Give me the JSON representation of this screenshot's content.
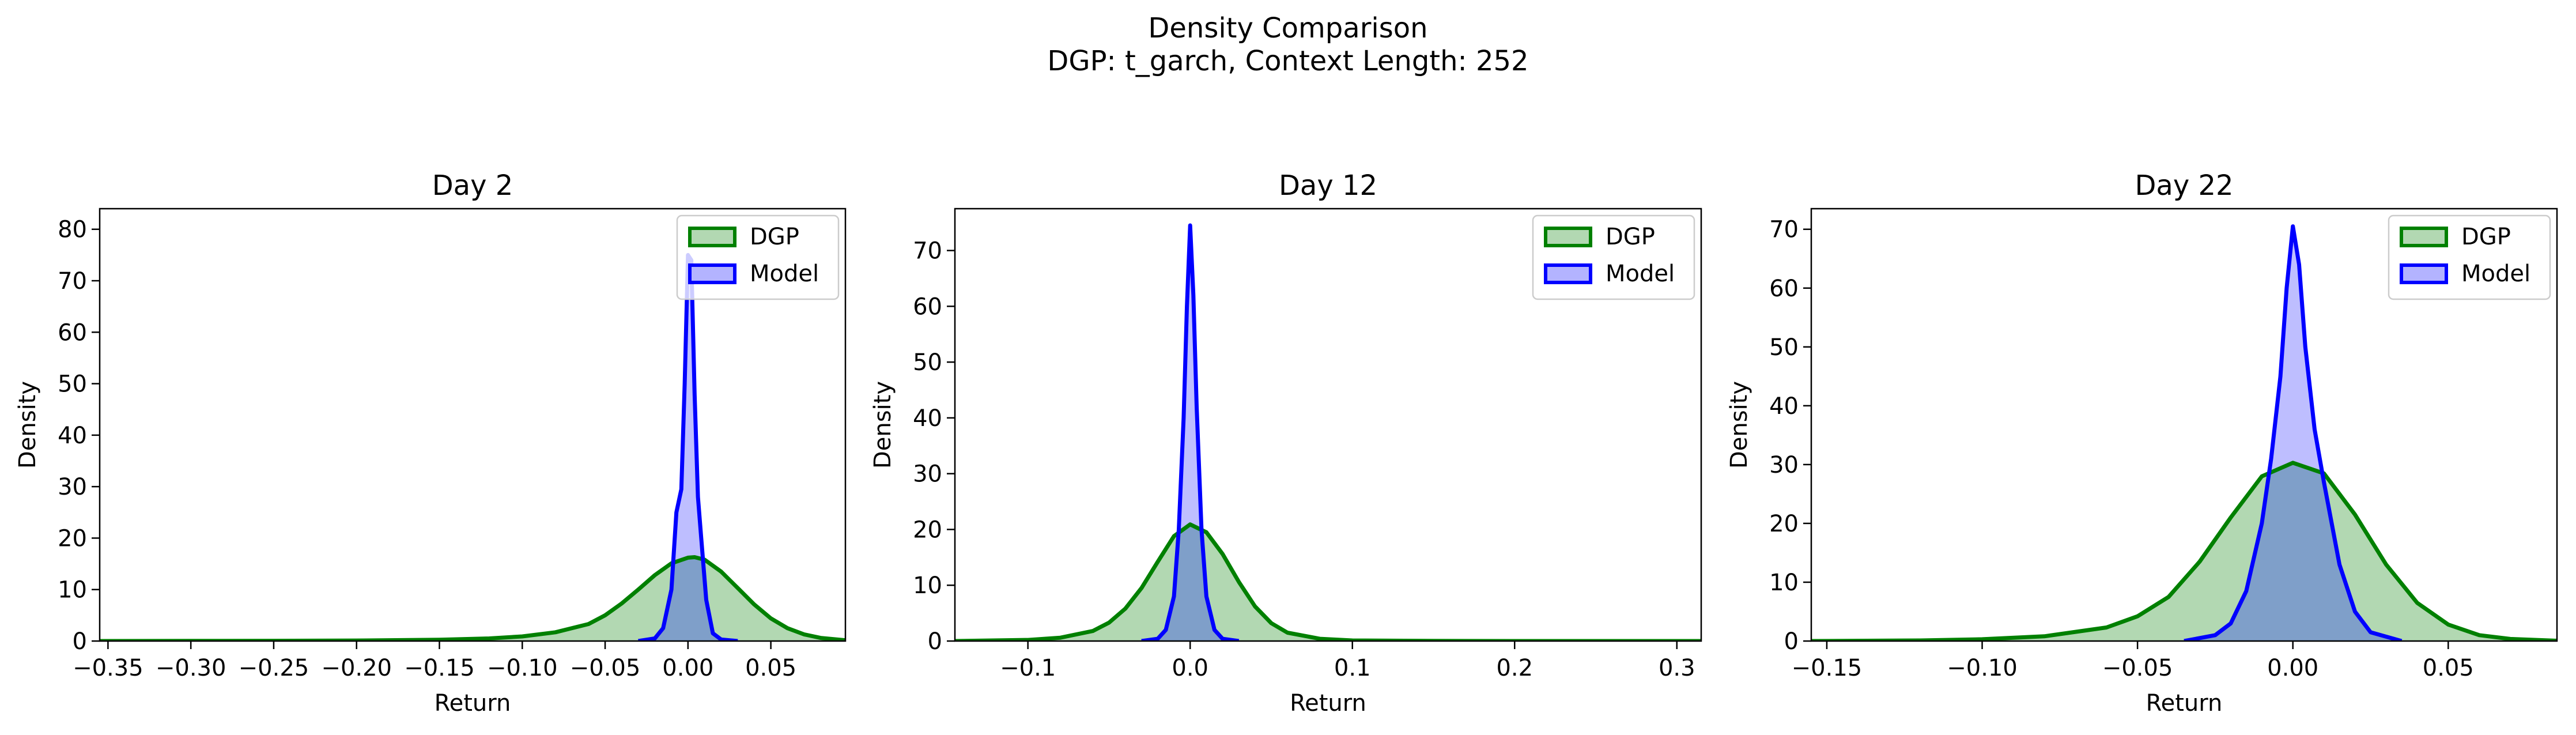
{
  "suptitle": [
    "Density Comparison",
    "DGP: t_garch, Context Length: 252"
  ],
  "legend_labels": [
    "DGP",
    "Model"
  ],
  "colors": {
    "dgp_line": "#008000",
    "dgp_fill": "#b2d8b2",
    "model_line": "#0000ff",
    "model_fill": "#b3b3ff",
    "overlap_fill": "#7f9fc9"
  },
  "chart_data": [
    {
      "type": "area",
      "title": "Day 2",
      "xlabel": "Return",
      "ylabel": "Density",
      "xlim": [
        -0.355,
        0.095
      ],
      "ylim": [
        0,
        84
      ],
      "xticks": [
        -0.35,
        -0.3,
        -0.25,
        -0.2,
        -0.15,
        -0.1,
        -0.05,
        0.0,
        0.05
      ],
      "xtick_labels": [
        "−0.35",
        "−0.30",
        "−0.25",
        "−0.20",
        "−0.15",
        "−0.10",
        "−0.05",
        "0.00",
        "0.05"
      ],
      "yticks": [
        0,
        10,
        20,
        30,
        40,
        50,
        60,
        70,
        80
      ],
      "ytick_labels": [
        "0",
        "10",
        "20",
        "30",
        "40",
        "50",
        "60",
        "70",
        "80"
      ],
      "legend": "top-right",
      "grid": false,
      "series": [
        {
          "name": "DGP",
          "x": [
            -0.355,
            -0.3,
            -0.25,
            -0.2,
            -0.15,
            -0.12,
            -0.1,
            -0.08,
            -0.06,
            -0.05,
            -0.04,
            -0.03,
            -0.02,
            -0.01,
            0.0,
            0.004,
            0.01,
            0.02,
            0.03,
            0.04,
            0.05,
            0.06,
            0.07,
            0.08,
            0.095
          ],
          "y": [
            0,
            0.02,
            0.05,
            0.1,
            0.25,
            0.5,
            0.9,
            1.7,
            3.3,
            5.0,
            7.3,
            10.0,
            12.8,
            15.1,
            16.2,
            16.3,
            15.8,
            13.5,
            10.3,
            7.1,
            4.4,
            2.5,
            1.3,
            0.6,
            0.15
          ]
        },
        {
          "name": "Model",
          "x": [
            -0.03,
            -0.02,
            -0.015,
            -0.01,
            -0.007,
            -0.004,
            -0.002,
            0.0,
            0.002,
            0.004,
            0.006,
            0.008,
            0.011,
            0.015,
            0.02,
            0.03
          ],
          "y": [
            0,
            0.5,
            2.5,
            10.0,
            25.0,
            29.5,
            50.0,
            75.0,
            74.0,
            48.0,
            28.0,
            20.0,
            8.0,
            1.5,
            0.3,
            0
          ]
        }
      ]
    },
    {
      "type": "area",
      "title": "Day 12",
      "xlabel": "Return",
      "ylabel": "Density",
      "xlim": [
        -0.145,
        0.315
      ],
      "ylim": [
        0,
        77.5
      ],
      "xticks": [
        -0.1,
        0.0,
        0.1,
        0.2,
        0.3
      ],
      "xtick_labels": [
        "−0.1",
        "0.0",
        "0.1",
        "0.2",
        "0.3"
      ],
      "yticks": [
        0,
        10,
        20,
        30,
        40,
        50,
        60,
        70
      ],
      "ytick_labels": [
        "0",
        "10",
        "20",
        "30",
        "40",
        "50",
        "60",
        "70"
      ],
      "legend": "top-right",
      "grid": false,
      "series": [
        {
          "name": "DGP",
          "x": [
            -0.145,
            -0.1,
            -0.08,
            -0.06,
            -0.05,
            -0.04,
            -0.03,
            -0.02,
            -0.01,
            0.0,
            0.01,
            0.02,
            0.03,
            0.04,
            0.05,
            0.06,
            0.08,
            0.1,
            0.15,
            0.2,
            0.315
          ],
          "y": [
            0,
            0.2,
            0.6,
            1.8,
            3.3,
            5.8,
            9.5,
            14.2,
            18.8,
            20.9,
            19.5,
            15.6,
            10.6,
            6.2,
            3.2,
            1.5,
            0.4,
            0.1,
            0.02,
            0,
            0
          ]
        },
        {
          "name": "Model",
          "x": [
            -0.03,
            -0.02,
            -0.015,
            -0.01,
            -0.007,
            -0.004,
            -0.002,
            0.0,
            0.002,
            0.004,
            0.007,
            0.01,
            0.015,
            0.02,
            0.03
          ],
          "y": [
            0,
            0.4,
            2.0,
            8.0,
            20.0,
            40.0,
            60.0,
            74.5,
            62.0,
            42.0,
            20.0,
            8.0,
            2.0,
            0.4,
            0
          ]
        }
      ]
    },
    {
      "type": "area",
      "title": "Day 22",
      "xlabel": "Return",
      "ylabel": "Density",
      "xlim": [
        -0.155,
        0.085
      ],
      "ylim": [
        0,
        73.5
      ],
      "xticks": [
        -0.15,
        -0.1,
        -0.05,
        0.0,
        0.05
      ],
      "xtick_labels": [
        "−0.15",
        "−0.10",
        "−0.05",
        "0.00",
        "0.05"
      ],
      "yticks": [
        0,
        10,
        20,
        30,
        40,
        50,
        60,
        70
      ],
      "ytick_labels": [
        "0",
        "10",
        "20",
        "30",
        "40",
        "50",
        "60",
        "70"
      ],
      "legend": "top-right",
      "grid": false,
      "series": [
        {
          "name": "DGP",
          "x": [
            -0.155,
            -0.12,
            -0.1,
            -0.08,
            -0.06,
            -0.05,
            -0.04,
            -0.03,
            -0.02,
            -0.01,
            0.0,
            0.01,
            0.02,
            0.03,
            0.04,
            0.05,
            0.06,
            0.07,
            0.085
          ],
          "y": [
            0,
            0.1,
            0.3,
            0.8,
            2.3,
            4.2,
            7.5,
            13.5,
            21.0,
            28.0,
            30.3,
            28.5,
            21.5,
            13.0,
            6.5,
            2.8,
            1.0,
            0.35,
            0.05
          ]
        },
        {
          "name": "Model",
          "x": [
            -0.035,
            -0.025,
            -0.02,
            -0.015,
            -0.01,
            -0.007,
            -0.004,
            -0.002,
            0.0,
            0.002,
            0.004,
            0.007,
            0.01,
            0.015,
            0.02,
            0.025,
            0.035
          ],
          "y": [
            0,
            1.0,
            3.0,
            8.5,
            20.0,
            31.0,
            45.0,
            60.0,
            70.5,
            64.0,
            50.0,
            36.0,
            27.0,
            13.0,
            5.0,
            1.5,
            0
          ]
        }
      ]
    }
  ]
}
